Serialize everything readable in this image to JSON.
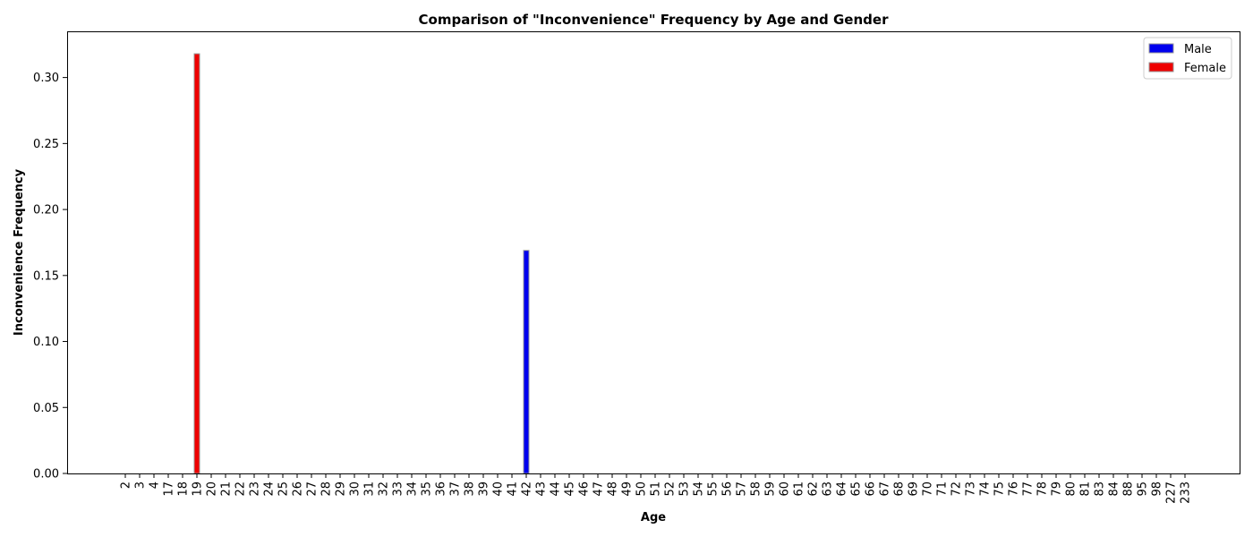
{
  "chart_data": {
    "type": "bar",
    "title": "Comparison of \"Inconvenience\" Frequency by Age and Gender",
    "xlabel": "Age",
    "ylabel": "Inconvenience Frequency",
    "categories": [
      "2",
      "3",
      "4",
      "17",
      "18",
      "19",
      "20",
      "21",
      "22",
      "23",
      "24",
      "25",
      "26",
      "27",
      "28",
      "29",
      "30",
      "31",
      "32",
      "33",
      "34",
      "35",
      "36",
      "37",
      "38",
      "39",
      "40",
      "41",
      "42",
      "43",
      "44",
      "45",
      "46",
      "47",
      "48",
      "49",
      "50",
      "51",
      "52",
      "53",
      "54",
      "55",
      "56",
      "57",
      "58",
      "59",
      "60",
      "61",
      "62",
      "63",
      "64",
      "65",
      "66",
      "67",
      "68",
      "69",
      "70",
      "71",
      "72",
      "73",
      "74",
      "75",
      "76",
      "77",
      "78",
      "79",
      "80",
      "81",
      "83",
      "84",
      "88",
      "95",
      "98",
      "227",
      "233"
    ],
    "series": [
      {
        "name": "Male",
        "color": "#0000ee",
        "values": {
          "42": 0.169
        }
      },
      {
        "name": "Female",
        "color": "#ee0000",
        "values": {
          "19": 0.318
        }
      }
    ],
    "ylim": [
      0,
      0.335
    ],
    "yticks": [
      "0.00",
      "0.05",
      "0.10",
      "0.15",
      "0.20",
      "0.25",
      "0.30"
    ],
    "grid": false,
    "legend_position": "top-right"
  }
}
